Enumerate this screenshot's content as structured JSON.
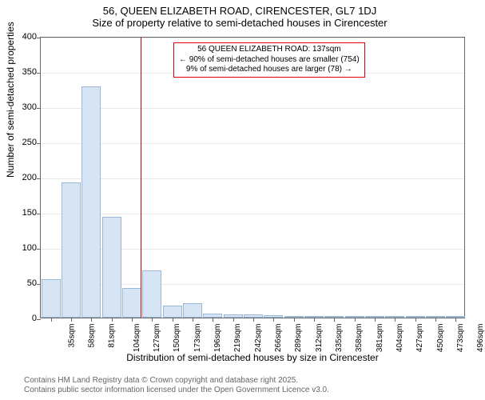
{
  "title": "56, QUEEN ELIZABETH ROAD, CIRENCESTER, GL7 1DJ",
  "subtitle": "Size of property relative to semi-detached houses in Cirencester",
  "y_axis_label": "Number of semi-detached properties",
  "x_axis_label": "Distribution of semi-detached houses by size in Cirencester",
  "chart": {
    "type": "histogram",
    "background_color": "#ffffff",
    "grid_color": "#e8e8e8",
    "axis_color": "#666666",
    "bar_fill": "#d7e4f4",
    "bar_stroke": "#9bb8d8",
    "marker_color": "#d00000",
    "ylim": [
      0,
      400
    ],
    "ytick_step": 50,
    "categories": [
      "35sqm",
      "58sqm",
      "81sqm",
      "104sqm",
      "127sqm",
      "150sqm",
      "173sqm",
      "196sqm",
      "219sqm",
      "242sqm",
      "266sqm",
      "289sqm",
      "312sqm",
      "335sqm",
      "358sqm",
      "381sqm",
      "404sqm",
      "427sqm",
      "450sqm",
      "473sqm",
      "496sqm"
    ],
    "values": [
      55,
      192,
      328,
      143,
      42,
      67,
      17,
      20,
      6,
      5,
      5,
      3,
      1,
      0,
      1,
      2,
      0,
      0,
      0,
      0,
      1
    ],
    "marker_value": 137,
    "x_min": 35,
    "x_step": 23,
    "bar_width_ratio": 0.95
  },
  "annotation": {
    "line1": "56 QUEEN ELIZABETH ROAD: 137sqm",
    "line2": "← 90% of semi-detached houses are smaller (754)",
    "line3": "9% of semi-detached houses are larger (78) →"
  },
  "footer": {
    "line1": "Contains HM Land Registry data © Crown copyright and database right 2025.",
    "line2": "Contains public sector information licensed under the Open Government Licence v3.0."
  }
}
